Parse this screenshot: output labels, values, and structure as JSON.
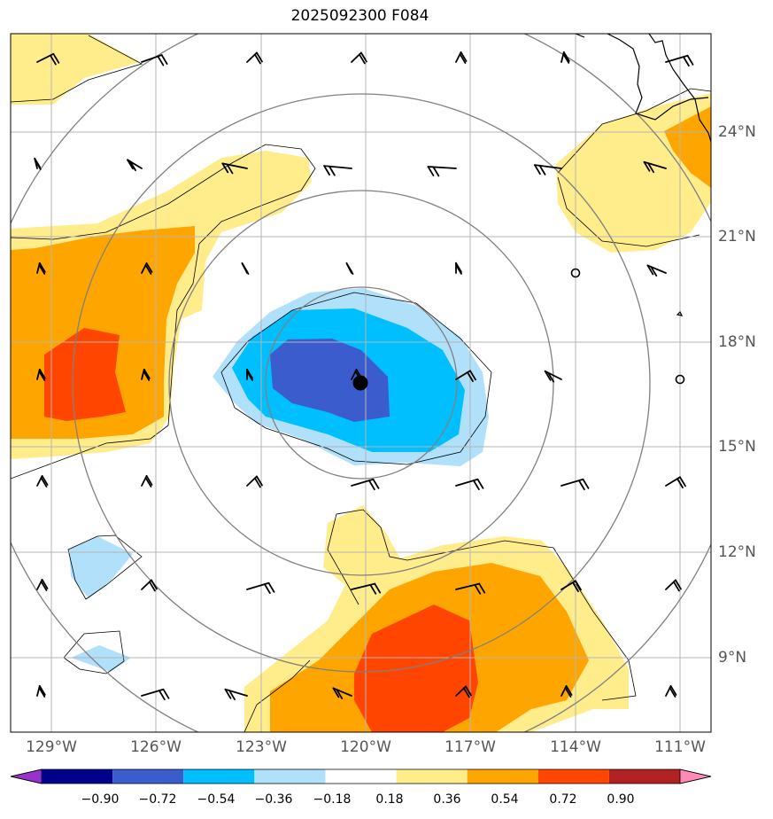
{
  "title": "2025092300 F084",
  "lat_labels": [
    "24°N",
    "21°N",
    "18°N",
    "15°N",
    "12°N",
    "9°N"
  ],
  "lon_labels": [
    "129°W",
    "126°W",
    "123°W",
    "120°W",
    "117°W",
    "114°W",
    "111°W"
  ],
  "colorbar": {
    "ticks": [
      "−0.90",
      "−0.72",
      "−0.54",
      "−0.36",
      "−0.18",
      "0.18",
      "0.36",
      "0.54",
      "0.72",
      "0.90"
    ],
    "colors": [
      "#9932cc",
      "#00008b",
      "#3a5ccc",
      "#00bfff",
      "#b0e0fa",
      "#ffffff",
      "#ffec8b",
      "#ffa500",
      "#ff4500",
      "#b22222",
      "#ff88b8"
    ]
  },
  "colors": {
    "grid": "#b5b5b5",
    "range_rings": "#808080",
    "contour": "#000000"
  }
}
